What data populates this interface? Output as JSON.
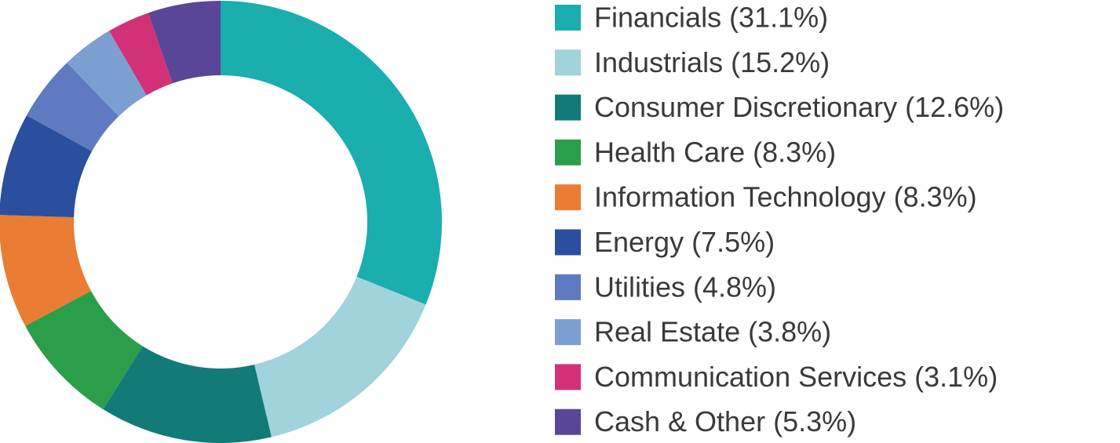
{
  "chart_data": {
    "type": "donut",
    "categories": [
      "Financials (31.1%)",
      "Industrials (15.2%)",
      "Consumer Discretionary (12.6%)",
      "Health Care (8.3%)",
      "Information Technology (8.3%)",
      "Energy (7.5%)",
      "Utilities (4.8%)",
      "Real Estate (3.8%)",
      "Communication Services (3.1%)",
      "Cash & Other (5.3%)"
    ],
    "values": [
      31.1,
      15.2,
      12.6,
      8.3,
      8.3,
      7.5,
      4.8,
      3.8,
      3.1,
      5.3
    ],
    "colors": [
      "#1aaeae",
      "#a0d3dc",
      "#127b77",
      "#2b9e4a",
      "#ea7d34",
      "#2a4f9e",
      "#5f7ac0",
      "#7b9fd1",
      "#d33177",
      "#5a4696"
    ]
  }
}
